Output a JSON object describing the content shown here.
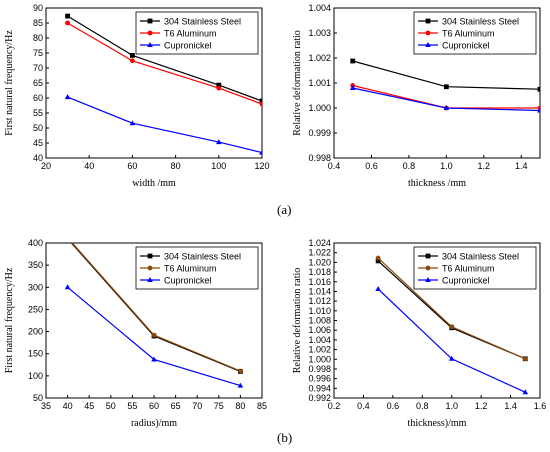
{
  "labels": {
    "a": "(a)",
    "b": "(b)"
  },
  "chart_data": [
    {
      "type": "line",
      "xlabel": "width /mm",
      "ylabel": "First natural frequency/Hz",
      "xlim": [
        20,
        120
      ],
      "ylim": [
        40,
        90
      ],
      "xticks": [
        "20",
        "40",
        "60",
        "80",
        "100",
        "120"
      ],
      "yticks": [
        "40",
        "45",
        "50",
        "55",
        "60",
        "65",
        "70",
        "75",
        "80",
        "85",
        "90"
      ],
      "x": [
        30,
        60,
        100,
        120
      ],
      "legend_position": "top-right",
      "series": [
        {
          "name": "304 Stainless Steel",
          "color": "#000000",
          "marker": "square",
          "values": [
            87.3,
            74.2,
            64.3,
            59.0
          ]
        },
        {
          "name": "T6 Aluminum",
          "color": "#ff0000",
          "marker": "circle",
          "values": [
            85.0,
            72.4,
            63.3,
            58.0
          ]
        },
        {
          "name": "Cupronickel",
          "color": "#0000ff",
          "marker": "triangle",
          "values": [
            60.3,
            51.6,
            45.3,
            41.8
          ]
        }
      ]
    },
    {
      "type": "line",
      "xlabel": "thickness /mm",
      "ylabel": "Relative deformation ratio",
      "xlim": [
        0.4,
        1.5
      ],
      "ylim": [
        0.998,
        1.004
      ],
      "xticks": [
        "0.4",
        "0.6",
        "0.8",
        "1.0",
        "1.2",
        "1.4"
      ],
      "yticks": [
        "0.998",
        "0.999",
        "1.000",
        "1.001",
        "1.002",
        "1.003",
        "1.004"
      ],
      "x": [
        0.5,
        1.0,
        1.5
      ],
      "legend_position": "top-right",
      "series": [
        {
          "name": "304 Stainless Steel",
          "color": "#000000",
          "marker": "square",
          "values": [
            1.00188,
            1.00085,
            1.00075
          ]
        },
        {
          "name": "T6 Aluminum",
          "color": "#ff0000",
          "marker": "circle",
          "values": [
            1.0009,
            1.0,
            1.0
          ]
        },
        {
          "name": "Cupronickel",
          "color": "#0000ff",
          "marker": "triangle",
          "values": [
            1.0008,
            1.0,
            0.9999
          ]
        }
      ]
    },
    {
      "type": "line",
      "xlabel": "radius)/mm",
      "ylabel": "First natural frequency/Hz",
      "xlim": [
        35,
        85
      ],
      "ylim": [
        50,
        400
      ],
      "xticks": [
        "35",
        "40",
        "45",
        "50",
        "55",
        "60",
        "65",
        "70",
        "75",
        "80",
        "85"
      ],
      "yticks": [
        "50",
        "100",
        "150",
        "200",
        "250",
        "300",
        "350",
        "400"
      ],
      "x": [
        40,
        60,
        80
      ],
      "legend_position": "top-right",
      "series": [
        {
          "name": "304 Stainless Steel",
          "color": "#000000",
          "marker": "square",
          "values": [
            410,
            190,
            110
          ]
        },
        {
          "name": "T6 Aluminum",
          "color": "#8b4a0a",
          "marker": "circle",
          "values": [
            412,
            192,
            111
          ]
        },
        {
          "name": "Cupronickel",
          "color": "#0000ff",
          "marker": "triangle",
          "values": [
            300,
            137,
            78
          ]
        }
      ]
    },
    {
      "type": "line",
      "xlabel": "thickness)/mm",
      "ylabel": "Relative deformation ratio",
      "xlim": [
        0.2,
        1.6
      ],
      "ylim": [
        0.992,
        1.024
      ],
      "xticks": [
        "0.2",
        "0.4",
        "0.6",
        "0.8",
        "1.0",
        "1.2",
        "1.4",
        "1.6"
      ],
      "yticks": [
        "0.992",
        "0.994",
        "0.996",
        "0.998",
        "1.000",
        "1.002",
        "1.004",
        "1.006",
        "1.008",
        "1.010",
        "1.012",
        "1.014",
        "1.016",
        "1.018",
        "1.020",
        "1.022",
        "1.024"
      ],
      "x": [
        0.5,
        1.0,
        1.5
      ],
      "legend_position": "top-right",
      "series": [
        {
          "name": "304 Stainless Steel",
          "color": "#000000",
          "marker": "square",
          "values": [
            1.0203,
            1.0065,
            1.0001
          ]
        },
        {
          "name": "T6 Aluminum",
          "color": "#8b4a0a",
          "marker": "circle",
          "values": [
            1.0209,
            1.0067,
            1.0001
          ]
        },
        {
          "name": "Cupronickel",
          "color": "#0000ff",
          "marker": "triangle",
          "values": [
            1.0145,
            1.0001,
            0.9932
          ]
        }
      ]
    }
  ]
}
